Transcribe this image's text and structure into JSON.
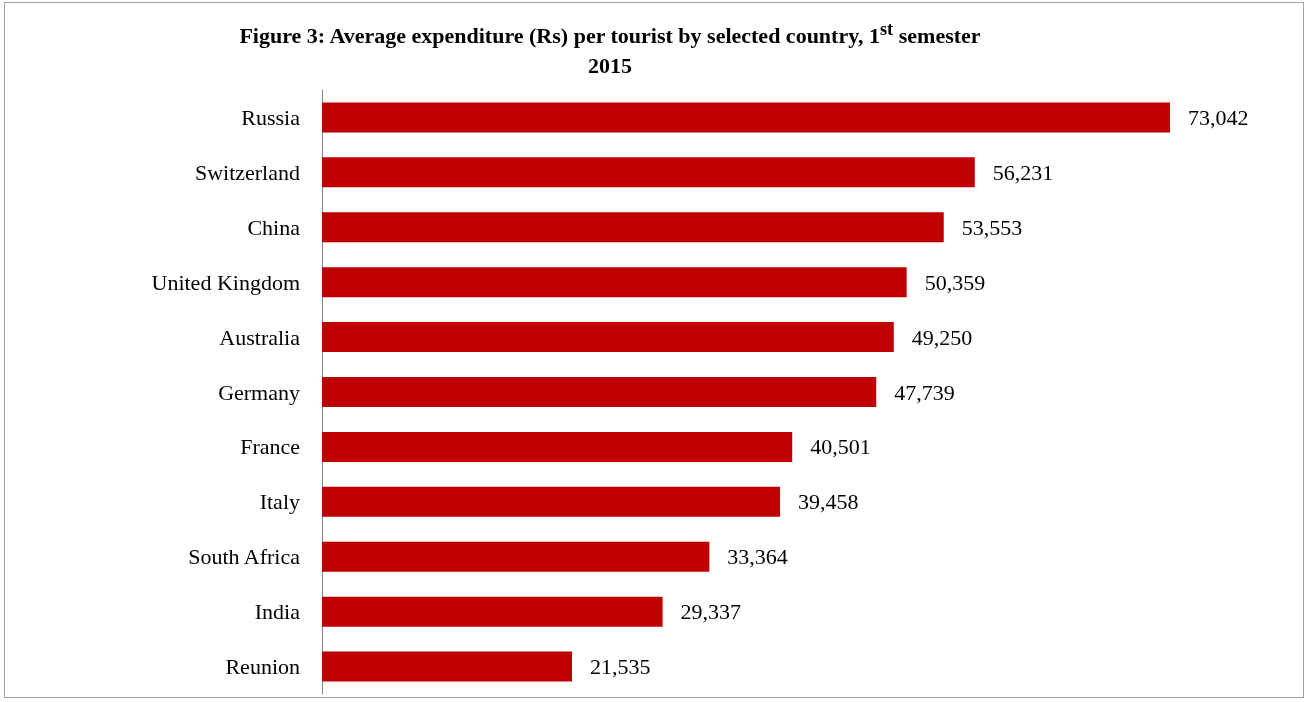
{
  "chart_data": {
    "type": "bar",
    "orientation": "horizontal",
    "title": "Figure 3: Average expenditure (Rs) per tourist by selected country, 1$^{st}$ semester 2015",
    "categories": [
      "Russia",
      "Switzerland",
      "China",
      "United Kingdom",
      "Australia",
      "Germany",
      "France",
      "Italy",
      "South Africa",
      "India",
      "Reunion"
    ],
    "values": [
      73042,
      56231,
      53553,
      50359,
      49250,
      47739,
      40501,
      39458,
      33364,
      29337,
      21535
    ],
    "value_labels": [
      "73,042",
      "56,231",
      "53,553",
      "50,359",
      "49,250",
      "47,739",
      "40,501",
      "39,458",
      "33,364",
      "29,337",
      "21,535"
    ],
    "color": "#c00000"
  }
}
